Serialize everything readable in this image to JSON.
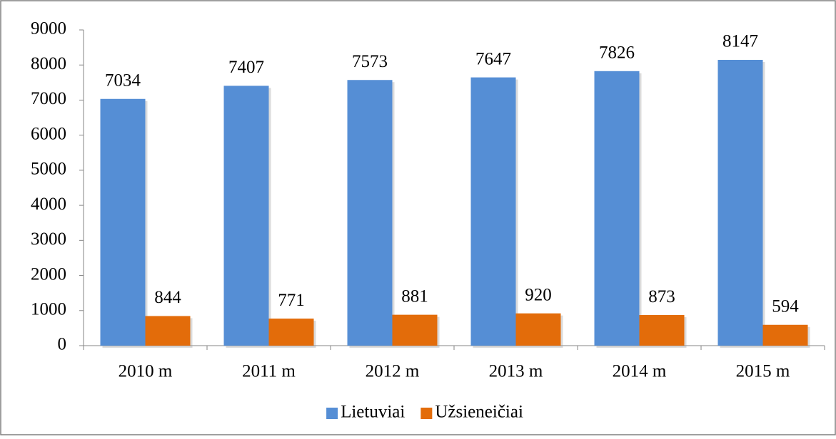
{
  "chart_data": {
    "type": "bar",
    "categories": [
      "2010 m",
      "2011 m",
      "2012 m",
      "2013 m",
      "2014 m",
      "2015 m"
    ],
    "series": [
      {
        "name": "Lietuviai",
        "color": "#558ed5",
        "values": [
          7034,
          7407,
          7573,
          7647,
          7826,
          8147
        ]
      },
      {
        "name": "Užsieneičiai",
        "color": "#e36c0a",
        "values": [
          844,
          771,
          881,
          920,
          873,
          594
        ]
      }
    ],
    "ylim": [
      0,
      9000
    ],
    "yticks": [
      0,
      1000,
      2000,
      3000,
      4000,
      5000,
      6000,
      7000,
      8000,
      9000
    ],
    "legend": "bottom"
  }
}
